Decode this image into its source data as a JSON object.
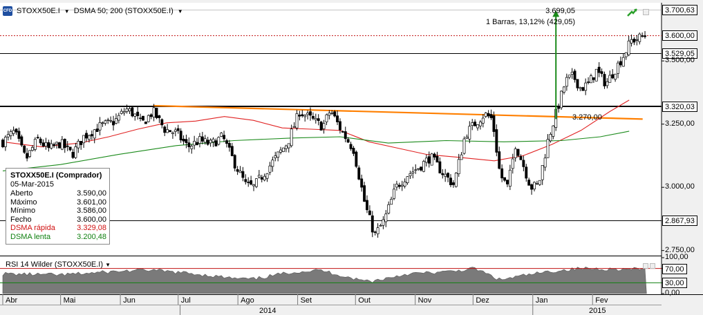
{
  "toolbar": {
    "logo_text": "CFD",
    "symbol": "STOXX50E.I",
    "indicator": "DSMA 50; 200 (STOXX50E.I)"
  },
  "info_box": {
    "title": "STOXX50E.I (Comprador)",
    "date": "05-Mar-2015",
    "rows": [
      {
        "label": "Aberto",
        "value": "3.590,00"
      },
      {
        "label": "Máximo",
        "value": "3.601,00"
      },
      {
        "label": "Mínimo",
        "value": "3.586,00"
      },
      {
        "label": "Fecho",
        "value": "3.600,00"
      },
      {
        "label": "DSMA rápida",
        "value": "3.329,08"
      },
      {
        "label": "DSMA lenta",
        "value": "3.200,48"
      }
    ]
  },
  "measure": {
    "price": "3.699,05",
    "detail": "1 Barras, 13,12% (429,05)"
  },
  "annotation": "3.270,00",
  "price_tags": [
    {
      "label": "3.700,63",
      "value": 3700.63
    },
    {
      "label": "3.600,00",
      "value": 3600.0
    },
    {
      "label": "3.529,05",
      "value": 3529.05
    },
    {
      "label": "3.320,03",
      "value": 3320.03
    },
    {
      "label": "2.867,93",
      "value": 2867.93
    }
  ],
  "rsi_panel": {
    "label": "RSI 14 Wilder (STOXX50E.I)",
    "levels": [
      {
        "label": "100,00",
        "value": 100
      },
      {
        "label": "70,00",
        "value": 70,
        "boxed": true
      },
      {
        "label": "30,00",
        "value": 30,
        "boxed": true
      },
      {
        "label": "0,00",
        "value": 0
      }
    ]
  },
  "colors": {
    "fast_ma": "#e02020",
    "slow_ma": "#1a8a1a",
    "trendline": "#ff7f00",
    "measure": "#1a8a1a",
    "rsi_fill": "#7a7a7a",
    "candle_up": "#ffffff",
    "candle_down": "#000000"
  },
  "chart_data": {
    "type": "candlestick",
    "y_axis_ticks": [
      {
        "label": "3.500,00",
        "value": 3500
      },
      {
        "label": "3.250,00",
        "value": 3250
      },
      {
        "label": "3.000,00",
        "value": 3000
      },
      {
        "label": "2.750,00",
        "value": 2750
      }
    ],
    "ylim": [
      2730,
      3730
    ],
    "month_labels": [
      "Abr",
      "Mai",
      "Jun",
      "Jul",
      "Ago",
      "Set",
      "Out",
      "Nov",
      "Dez",
      "Jan",
      "Fev"
    ],
    "year_labels": [
      "2014",
      "2015"
    ],
    "x_range_days": [
      0,
      340
    ],
    "month_starts_day": [
      0,
      30,
      61,
      91,
      122,
      153,
      183,
      214,
      244,
      275,
      306
    ],
    "year_start_day": [
      92,
      275
    ],
    "series": [
      {
        "name": "DSMA rápida",
        "values_by_day": [
          [
            0,
            3180
          ],
          [
            20,
            3160
          ],
          [
            40,
            3175
          ],
          [
            55,
            3200
          ],
          [
            70,
            3230
          ],
          [
            85,
            3255
          ],
          [
            100,
            3262
          ],
          [
            115,
            3280
          ],
          [
            130,
            3265
          ],
          [
            145,
            3235
          ],
          [
            160,
            3230
          ],
          [
            175,
            3225
          ],
          [
            190,
            3180
          ],
          [
            205,
            3155
          ],
          [
            220,
            3130
          ],
          [
            235,
            3120
          ],
          [
            255,
            3105
          ],
          [
            270,
            3125
          ],
          [
            285,
            3170
          ],
          [
            300,
            3225
          ],
          [
            315,
            3300
          ],
          [
            325,
            3345
          ]
        ]
      },
      {
        "name": "DSMA lenta",
        "values_by_day": [
          [
            0,
            3065
          ],
          [
            30,
            3090
          ],
          [
            60,
            3130
          ],
          [
            90,
            3165
          ],
          [
            120,
            3185
          ],
          [
            150,
            3195
          ],
          [
            175,
            3200
          ],
          [
            200,
            3175
          ],
          [
            230,
            3185
          ],
          [
            260,
            3180
          ],
          [
            290,
            3185
          ],
          [
            310,
            3200
          ],
          [
            325,
            3222
          ]
        ]
      }
    ],
    "trendline": {
      "from": [
        78,
        3323
      ],
      "to": [
        332,
        3270
      ]
    },
    "measure_line": {
      "day": 287,
      "from": 3270,
      "to": 3699.05
    },
    "ohlc_anchors": [
      [
        0,
        3180
      ],
      [
        6,
        3220
      ],
      [
        12,
        3110
      ],
      [
        18,
        3190
      ],
      [
        24,
        3150
      ],
      [
        30,
        3175
      ],
      [
        36,
        3130
      ],
      [
        42,
        3200
      ],
      [
        50,
        3240
      ],
      [
        58,
        3260
      ],
      [
        64,
        3310
      ],
      [
        68,
        3290
      ],
      [
        72,
        3250
      ],
      [
        78,
        3300
      ],
      [
        84,
        3230
      ],
      [
        90,
        3215
      ],
      [
        96,
        3160
      ],
      [
        102,
        3185
      ],
      [
        108,
        3170
      ],
      [
        114,
        3200
      ],
      [
        120,
        3100
      ],
      [
        126,
        3010
      ],
      [
        130,
        3000
      ],
      [
        136,
        3060
      ],
      [
        142,
        3120
      ],
      [
        148,
        3180
      ],
      [
        154,
        3300
      ],
      [
        160,
        3270
      ],
      [
        166,
        3240
      ],
      [
        170,
        3305
      ],
      [
        176,
        3220
      ],
      [
        182,
        3150
      ],
      [
        188,
        2930
      ],
      [
        193,
        2810
      ],
      [
        198,
        2870
      ],
      [
        204,
        3000
      ],
      [
        210,
        3050
      ],
      [
        216,
        3080
      ],
      [
        222,
        3120
      ],
      [
        228,
        3060
      ],
      [
        234,
        3010
      ],
      [
        240,
        3210
      ],
      [
        246,
        3260
      ],
      [
        250,
        3290
      ],
      [
        254,
        3270
      ],
      [
        258,
        3050
      ],
      [
        262,
        3000
      ],
      [
        266,
        3170
      ],
      [
        270,
        3090
      ],
      [
        274,
        3000
      ],
      [
        278,
        3010
      ],
      [
        283,
        3190
      ],
      [
        287,
        3290
      ],
      [
        292,
        3420
      ],
      [
        296,
        3440
      ],
      [
        300,
        3390
      ],
      [
        304,
        3410
      ],
      [
        308,
        3460
      ],
      [
        313,
        3410
      ],
      [
        318,
        3470
      ],
      [
        322,
        3520
      ],
      [
        326,
        3580
      ],
      [
        330,
        3590
      ],
      [
        333,
        3600
      ]
    ]
  }
}
